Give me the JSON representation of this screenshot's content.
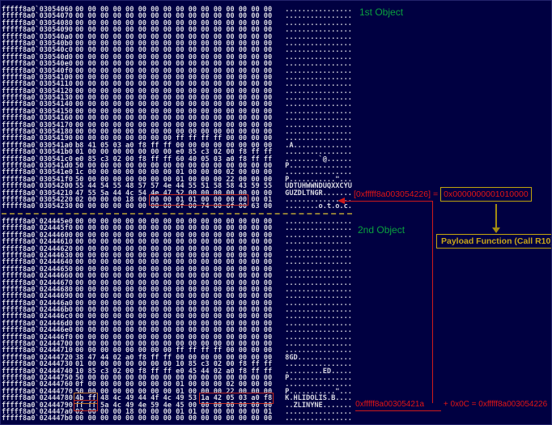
{
  "colors": {
    "background": "#000041",
    "hex_text": "#d9d9e2",
    "object_label_green": "#0aa13e",
    "annotation_red": "#e31515",
    "highlight_red_box": "#c32b20",
    "highlight_orange_box": "#c0762b",
    "gold_yellow": "#c7a60e",
    "separator_olive": "#8d7b38"
  },
  "pane1": {
    "label": "1st Object",
    "rows": [
      {
        "a": "fffff8a0`03054060",
        "s": [
          [
            "00 00 00 00 00 00 00 00 00 00 00 00 00 00 00 00",
            ""
          ]
        ],
        "t": "................"
      },
      {
        "a": "fffff8a0`03054070",
        "s": [
          [
            "00 00 00 00 00 00 00 00 00 00 00 00 00 00 00 00",
            ""
          ]
        ],
        "t": "................"
      },
      {
        "a": "fffff8a0`03054080",
        "s": [
          [
            "00 00 00 00 00 00 00 00 00 00 00 00 00 00 00 00",
            ""
          ]
        ],
        "t": "................"
      },
      {
        "a": "fffff8a0`03054090",
        "s": [
          [
            "00 00 00 00 00 00 00 00 00 00 00 00 00 00 00 00",
            ""
          ]
        ],
        "t": "................"
      },
      {
        "a": "fffff8a0`030540a0",
        "s": [
          [
            "00 00 00 00 00 00 00 00 00 00 00 00 00 00 00 00",
            ""
          ]
        ],
        "t": "................"
      },
      {
        "a": "fffff8a0`030540b0",
        "s": [
          [
            "00 00 00 00 00 00 00 00 00 00 00 00 00 00 00 00",
            ""
          ]
        ],
        "t": "................"
      },
      {
        "a": "fffff8a0`030540c0",
        "s": [
          [
            "00 00 00 00 00 00 00 00 00 00 00 00 00 00 00 00",
            ""
          ]
        ],
        "t": "................"
      },
      {
        "a": "fffff8a0`030540d0",
        "s": [
          [
            "00 00 00 00 00 00 00 00 00 00 00 00 00 00 00 00",
            ""
          ]
        ],
        "t": "................"
      },
      {
        "a": "fffff8a0`030540e0",
        "s": [
          [
            "00 00 00 00 00 00 00 00 00 00 00 00 00 00 00 00",
            ""
          ]
        ],
        "t": "................"
      },
      {
        "a": "fffff8a0`030540f0",
        "s": [
          [
            "00 00 00 00 00 00 00 00 00 00 00 00 00 00 00 00",
            ""
          ]
        ],
        "t": "................"
      },
      {
        "a": "fffff8a0`03054100",
        "s": [
          [
            "00 00 00 00 00 00 00 00 00 00 00 00 00 00 00 00",
            ""
          ]
        ],
        "t": "................"
      },
      {
        "a": "fffff8a0`03054110",
        "s": [
          [
            "00 00 00 00 00 00 00 00 00 00 00 00 00 00 00 00",
            ""
          ]
        ],
        "t": "................"
      },
      {
        "a": "fffff8a0`03054120",
        "s": [
          [
            "00 00 00 00 00 00 00 00 00 00 00 00 00 00 00 00",
            ""
          ]
        ],
        "t": "................"
      },
      {
        "a": "fffff8a0`03054130",
        "s": [
          [
            "00 00 00 00 00 00 00 00 00 00 00 00 00 00 00 00",
            ""
          ]
        ],
        "t": "................"
      },
      {
        "a": "fffff8a0`03054140",
        "s": [
          [
            "00 00 00 00 00 00 00 00 00 00 00 00 00 00 00 00",
            ""
          ]
        ],
        "t": "................"
      },
      {
        "a": "fffff8a0`03054150",
        "s": [
          [
            "00 00 00 00 00 00 00 00 00 00 00 00 00 00 00 00",
            ""
          ]
        ],
        "t": "................"
      },
      {
        "a": "fffff8a0`03054160",
        "s": [
          [
            "00 00 00 00 00 00 00 00 00 00 00 00 00 00 00 00",
            ""
          ]
        ],
        "t": "................"
      },
      {
        "a": "fffff8a0`03054170",
        "s": [
          [
            "00 00 00 00 00 00 00 00 00 00 00 00 00 00 00 00",
            ""
          ]
        ],
        "t": "................"
      },
      {
        "a": "fffff8a0`03054180",
        "s": [
          [
            "00 00 00 00 00 00 00 00 00 00 00 00 00 00 00 00",
            ""
          ]
        ],
        "t": "................"
      },
      {
        "a": "fffff8a0`03054190",
        "s": [
          [
            "00 00 00 00 00 00 00 00 ff ff ff ff 00 00 00 00",
            ""
          ]
        ],
        "t": "................"
      },
      {
        "a": "fffff8a0`030541a0",
        "s": [
          [
            "b8 41 05 03 a0 f8 ff ff 00 00 00 00 00 00 00 00",
            ""
          ]
        ],
        "t": ".A.............."
      },
      {
        "a": "fffff8a0`030541b0",
        "s": [
          [
            "01 00 00 00 00 00 00 00 e0 85 c3 02 00 f8 ff ff",
            ""
          ]
        ],
        "t": "................"
      },
      {
        "a": "fffff8a0`030541c0",
        "s": [
          [
            "e0 85 c3 02 00 f8 ff ff 60 40 05 03 a0 f8 ff ff",
            ""
          ]
        ],
        "t": "........`@......"
      },
      {
        "a": "fffff8a0`030541d0",
        "s": [
          [
            "50 00 00 00 00 00 00 00 00 00 00 00 00 00 00 00",
            ""
          ]
        ],
        "t": "P..............."
      },
      {
        "a": "fffff8a0`030541e0",
        "s": [
          [
            "1c 00 00 00 00 00 00 00 01 00 00 00 02 00 00 00",
            ""
          ]
        ],
        "t": "................"
      },
      {
        "a": "fffff8a0`030541f0",
        "s": [
          [
            "50 00 00 00 00 00 00 00 01 00 00 00 22 00 00 00",
            ""
          ]
        ],
        "t": "P...........\"..."
      },
      {
        "a": "fffff8a0`03054200",
        "s": [
          [
            "55 44 54 55 48 57 57 4e 44 55 51 58 58 43 59 55",
            ""
          ]
        ],
        "t": "UDTUHWWNDUQXXCYU"
      },
      {
        "a": "fffff8a0`03054210",
        "s": [
          [
            "47 55 5a 44 4c 54 4e 47 52 00 00 00 00 00 00 00",
            ""
          ]
        ],
        "t": "GUZDLTNGR......."
      },
      {
        "a": "fffff8a0`03054220",
        "s": [
          [
            "02 00 00 00 18 00 ",
            ""
          ],
          [
            "00 00 01 01 00 00 00 00",
            "red"
          ],
          [
            " 00 01",
            ""
          ]
        ],
        "t": "................"
      },
      {
        "a": "fffff8a0`03054230",
        "s": [
          [
            "00 00 00 00 00 00 00 00 6f 00 74 00 6f 00 63 00",
            ""
          ]
        ],
        "t": "........o.t.o.c."
      }
    ]
  },
  "pane2": {
    "label": "2nd Object",
    "rows": [
      {
        "a": "fffff8a0`024445e0",
        "s": [
          [
            "00 00 00 00 00 00 00 00 00 00 00 00 00 00 00 00",
            ""
          ]
        ],
        "t": "................"
      },
      {
        "a": "fffff8a0`024445f0",
        "s": [
          [
            "00 00 00 00 00 00 00 00 00 00 00 00 00 00 00 00",
            ""
          ]
        ],
        "t": "................"
      },
      {
        "a": "fffff8a0`02444600",
        "s": [
          [
            "00 00 00 00 00 00 00 00 00 00 00 00 00 00 00 00",
            ""
          ]
        ],
        "t": "................"
      },
      {
        "a": "fffff8a0`02444610",
        "s": [
          [
            "00 00 00 00 00 00 00 00 00 00 00 00 00 00 00 00",
            ""
          ]
        ],
        "t": "................"
      },
      {
        "a": "fffff8a0`02444620",
        "s": [
          [
            "00 00 00 00 00 00 00 00 00 00 00 00 00 00 00 00",
            ""
          ]
        ],
        "t": "................"
      },
      {
        "a": "fffff8a0`02444630",
        "s": [
          [
            "00 00 00 00 00 00 00 00 00 00 00 00 00 00 00 00",
            ""
          ]
        ],
        "t": "................"
      },
      {
        "a": "fffff8a0`02444640",
        "s": [
          [
            "00 00 00 00 00 00 00 00 00 00 00 00 00 00 00 00",
            ""
          ]
        ],
        "t": "................"
      },
      {
        "a": "fffff8a0`02444650",
        "s": [
          [
            "00 00 00 00 00 00 00 00 00 00 00 00 00 00 00 00",
            ""
          ]
        ],
        "t": "................"
      },
      {
        "a": "fffff8a0`02444660",
        "s": [
          [
            "00 00 00 00 00 00 00 00 00 00 00 00 00 00 00 00",
            ""
          ]
        ],
        "t": "................"
      },
      {
        "a": "fffff8a0`02444670",
        "s": [
          [
            "00 00 00 00 00 00 00 00 00 00 00 00 00 00 00 00",
            ""
          ]
        ],
        "t": "................"
      },
      {
        "a": "fffff8a0`02444680",
        "s": [
          [
            "00 00 00 00 00 00 00 00 00 00 00 00 00 00 00 00",
            ""
          ]
        ],
        "t": "................"
      },
      {
        "a": "fffff8a0`02444690",
        "s": [
          [
            "00 00 00 00 00 00 00 00 00 00 00 00 00 00 00 00",
            ""
          ]
        ],
        "t": "................"
      },
      {
        "a": "fffff8a0`024446a0",
        "s": [
          [
            "00 00 00 00 00 00 00 00 00 00 00 00 00 00 00 00",
            ""
          ]
        ],
        "t": "................"
      },
      {
        "a": "fffff8a0`024446b0",
        "s": [
          [
            "00 00 00 00 00 00 00 00 00 00 00 00 00 00 00 00",
            ""
          ]
        ],
        "t": "................"
      },
      {
        "a": "fffff8a0`024446c0",
        "s": [
          [
            "00 00 00 00 00 00 00 00 00 00 00 00 00 00 00 00",
            ""
          ]
        ],
        "t": "................"
      },
      {
        "a": "fffff8a0`024446d0",
        "s": [
          [
            "00 00 00 00 00 00 00 00 00 00 00 00 00 00 00 00",
            ""
          ]
        ],
        "t": "................"
      },
      {
        "a": "fffff8a0`024446e0",
        "s": [
          [
            "00 00 00 00 00 00 00 00 00 00 00 00 00 00 00 00",
            ""
          ]
        ],
        "t": "................"
      },
      {
        "a": "fffff8a0`024446f0",
        "s": [
          [
            "00 00 00 00 00 00 00 00 00 00 00 00 00 00 00 00",
            ""
          ]
        ],
        "t": "................"
      },
      {
        "a": "fffff8a0`02444700",
        "s": [
          [
            "00 00 00 00 00 00 00 00 00 00 00 00 00 00 00 00",
            ""
          ]
        ],
        "t": "................"
      },
      {
        "a": "fffff8a0`02444710",
        "s": [
          [
            "00 00 00 00 00 00 00 00 ff ff ff ff 00 00 00 00",
            ""
          ]
        ],
        "t": "................"
      },
      {
        "a": "fffff8a0`02444720",
        "s": [
          [
            "38 47 44 02 a0 f8 ff ff 00 00 00 00 00 00 00 00",
            ""
          ]
        ],
        "t": "8GD............."
      },
      {
        "a": "fffff8a0`02444730",
        "s": [
          [
            "01 00 00 00 00 00 00 00 10 85 c3 02 00 f8 ff ff",
            ""
          ]
        ],
        "t": "................"
      },
      {
        "a": "fffff8a0`02444740",
        "s": [
          [
            "10 85 c3 02 00 f8 ff ff e0 45 44 02 a0 f8 ff ff",
            ""
          ]
        ],
        "t": ".........ED....."
      },
      {
        "a": "fffff8a0`02444750",
        "s": [
          [
            "50 00 00 00 00 00 00 00 00 00 00 00 00 00 00 00",
            ""
          ]
        ],
        "t": "P..............."
      },
      {
        "a": "fffff8a0`02444760",
        "s": [
          [
            "0f 00 00 00 00 00 00 00 01 00 00 00 02 00 00 00",
            ""
          ]
        ],
        "t": "................"
      },
      {
        "a": "fffff8a0`02444770",
        "s": [
          [
            "50 00 00 00 00 00 00 00 01 00 00 00 22 00 00 00",
            ""
          ]
        ],
        "t": "P...........\"..."
      },
      {
        "a": "fffff8a0`02444780",
        "s": [
          [
            "4b ff",
            "orange"
          ],
          [
            " 48 4c 49 44 4f 4c 49 53 ",
            ""
          ],
          [
            "1a 42 05 03 a0 f8",
            "red"
          ]
        ],
        "t": "K.HLIDOLIS.B...."
      },
      {
        "a": "fffff8a0`02444790",
        "s": [
          [
            "ff ff",
            "red"
          ],
          [
            " 5a 4c 49 4e 59 4e 45 00 00 00 00 00 00 00",
            ""
          ]
        ],
        "t": "..ZLINYNE......."
      },
      {
        "a": "fffff8a0`024447a0",
        "s": [
          [
            "02 00 00 00 18 00 00 00 01 01 00 00 00 00 00 01",
            ""
          ]
        ],
        "t": "................"
      },
      {
        "a": "fffff8a0`024447b0",
        "s": [
          [
            "00 00 00 00 00 00 00 00 00 00 00 00 00 00 00 00",
            ""
          ]
        ],
        "t": "................"
      }
    ]
  },
  "annotations": {
    "deref": {
      "lhs": "[0xfffff8a003054226]",
      "eq": "=",
      "value": "0x0000000001010000"
    },
    "payload": {
      "label": "Payload Function (Call R10)"
    },
    "calc": {
      "ptr": "0xfffff8a00305421a",
      "mid": " + 0x0C = ",
      "result": "0xfffff8a003054226"
    }
  }
}
